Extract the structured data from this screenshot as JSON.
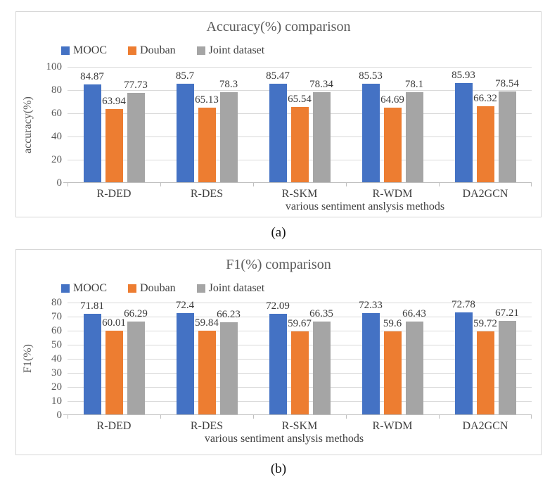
{
  "page": {
    "background": "#ffffff"
  },
  "colors": {
    "mooc_blue": "#4472C4",
    "douban_orange": "#ED7D31",
    "joint_gray": "#A5A5A5",
    "gridline": "#D9D9D9",
    "axis_text": "#595959",
    "data_label_text": "#3A3A3A"
  },
  "chart_data": [
    {
      "type": "bar",
      "title": "Accuracy(%) comparison",
      "xlabel": "various sentiment anslysis methods",
      "ylabel": "accuracy(%)",
      "ylim": [
        0,
        100
      ],
      "ytick_step": 20,
      "grid": true,
      "legend_position": "top-left",
      "legend": [
        "MOOC",
        "Douban",
        "Joint dataset"
      ],
      "categories": [
        "R-DED",
        "R-DES",
        "R-SKM",
        "R-WDM",
        "DA2GCN"
      ],
      "series": [
        {
          "name": "MOOC",
          "color": "#4472C4",
          "values": [
            84.87,
            85.7,
            85.47,
            85.53,
            85.93
          ]
        },
        {
          "name": "Douban",
          "color": "#ED7D31",
          "values": [
            63.94,
            65.13,
            65.54,
            64.69,
            66.32
          ]
        },
        {
          "name": "Joint dataset",
          "color": "#A5A5A5",
          "values": [
            77.73,
            78.3,
            78.34,
            78.1,
            78.54
          ]
        }
      ],
      "caption": "(a)"
    },
    {
      "type": "bar",
      "title": "F1(%) comparison",
      "xlabel": "various sentiment anslysis methods",
      "ylabel": "F1(%)",
      "ylim": [
        0,
        80
      ],
      "ytick_step": 10,
      "grid": true,
      "legend_position": "top-left",
      "legend": [
        "MOOC",
        "Douban",
        "Joint dataset"
      ],
      "categories": [
        "R-DED",
        "R-DES",
        "R-SKM",
        "R-WDM",
        "DA2GCN"
      ],
      "series": [
        {
          "name": "MOOC",
          "color": "#4472C4",
          "values": [
            71.81,
            72.4,
            72.09,
            72.33,
            72.78
          ]
        },
        {
          "name": "Douban",
          "color": "#ED7D31",
          "values": [
            60.01,
            59.84,
            59.67,
            59.6,
            59.72
          ]
        },
        {
          "name": "Joint dataset",
          "color": "#A5A5A5",
          "values": [
            66.29,
            66.23,
            66.35,
            66.43,
            67.21
          ]
        }
      ],
      "caption": "(b)"
    }
  ]
}
